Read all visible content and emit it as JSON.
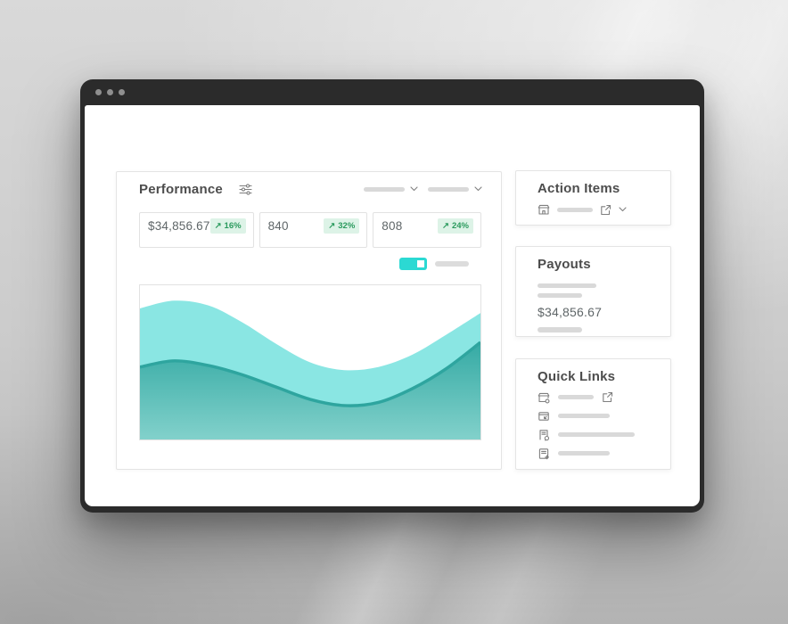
{
  "colors": {
    "accent_cyan": "#2BD9D3",
    "badge_bg": "#DDF3E7",
    "badge_text": "#2A9A5D",
    "wave_light": "#8AE6E3",
    "wave_dark_stroke": "#2EA59F",
    "wave_fill_top": "#35AAA4",
    "wave_fill_bottom": "#82D1CB",
    "window_frame": "#2B2B2B"
  },
  "icons": {
    "window_controls": "three-dots",
    "sliders": "filter-sliders",
    "chevron_down": "⌄",
    "trend_up": "↗",
    "storefront": "shop-awning",
    "external_link": "box-arrow-out",
    "invoice": "card-arrow",
    "document_refresh": "page-circle",
    "document_add": "page-plus"
  },
  "performance": {
    "title": "Performance",
    "trend_arrow": "↗",
    "stats": [
      {
        "value": "$34,856.67",
        "change": "16%"
      },
      {
        "value": "840",
        "change": "32%"
      },
      {
        "value": "808",
        "change": "24%"
      }
    ]
  },
  "sidebar": {
    "action_items": {
      "title": "Action Items"
    },
    "payouts": {
      "title": "Payouts",
      "amount": "$34,856.67"
    },
    "quick_links": {
      "title": "Quick Links"
    }
  },
  "chart_data": {
    "type": "area",
    "title": "",
    "xlabel": "",
    "ylabel": "",
    "axes": "none",
    "legend": "none",
    "note": "decorative smooth two-layer wave area chart, values are % of chart height measured from the top edge",
    "x_percent": [
      0,
      10,
      20,
      30,
      40,
      50,
      60,
      70,
      80,
      90,
      100
    ],
    "series": [
      {
        "name": "upper-wave",
        "color": "#8AE6E3",
        "top_edge_percent_from_top": [
          15,
          10,
          13,
          24,
          38,
          50,
          55,
          53,
          45,
          32,
          18
        ]
      },
      {
        "name": "lower-wave",
        "stroke": "#2EA59F",
        "fill_top": "#35AAA4",
        "fill_bottom": "#82D1CB",
        "top_edge_percent_from_top": [
          53,
          49,
          52,
          58,
          66,
          74,
          78,
          76,
          67,
          54,
          37
        ]
      }
    ]
  }
}
